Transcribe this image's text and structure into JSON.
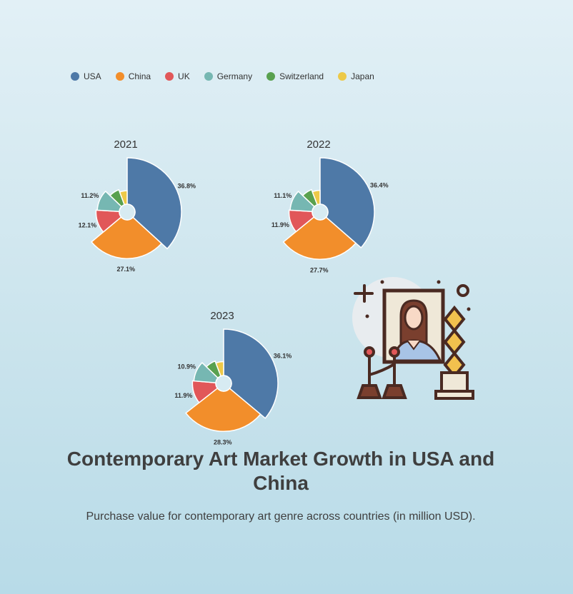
{
  "title": "Contemporary Art Market Growth in USA and China",
  "subtitle": "Purchase value for contemporary art genre across countries (in million USD).",
  "colors": {
    "USA": "#4e79a7",
    "China": "#f28e2b",
    "UK": "#e15759",
    "Germany": "#76b7b2",
    "Switzerland": "#59a14f",
    "Japan": "#edc948"
  },
  "legend": [
    "USA",
    "China",
    "UK",
    "Germany",
    "Switzerland",
    "Japan"
  ],
  "chart_data": [
    {
      "type": "pie",
      "title": "2021",
      "categories": [
        "USA",
        "China",
        "UK",
        "Germany",
        "Switzerland",
        "Japan"
      ],
      "percent_labels": [
        "36.8%",
        "27.1%",
        "12.1%",
        "11.2%",
        "",
        ""
      ],
      "values": [
        36.8,
        27.1,
        12.1,
        11.2,
        7.1,
        5.7
      ]
    },
    {
      "type": "pie",
      "title": "2022",
      "categories": [
        "USA",
        "China",
        "UK",
        "Germany",
        "Switzerland",
        "Japan"
      ],
      "percent_labels": [
        "36.4%",
        "27.7%",
        "11.9%",
        "11.1%",
        "",
        ""
      ],
      "values": [
        36.4,
        27.7,
        11.9,
        11.1,
        7.1,
        5.8
      ]
    },
    {
      "type": "pie",
      "title": "2023",
      "categories": [
        "USA",
        "China",
        "UK",
        "Germany",
        "Switzerland",
        "Japan"
      ],
      "percent_labels": [
        "36.1%",
        "28.3%",
        "11.9%",
        "10.9%",
        "",
        ""
      ],
      "values": [
        36.1,
        28.3,
        11.9,
        10.9,
        7.0,
        5.8
      ]
    }
  ]
}
